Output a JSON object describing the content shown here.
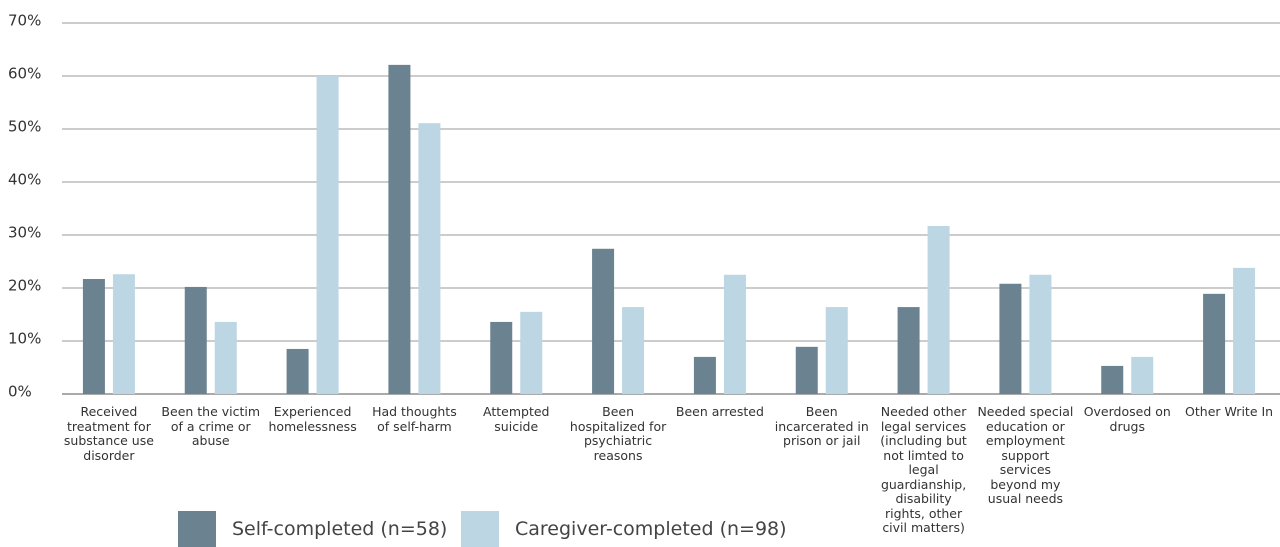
{
  "chart_data": {
    "type": "bar",
    "categories": [
      "Received treatment for substance use disorder",
      "Been the victim of a crime or abuse",
      "Experienced homelessness",
      "Had thoughts of self-harm",
      "Attempted suicide",
      "Been hospitalized for psychiatric reasons",
      "Been arrested",
      "Been incarcerated in prison or jail",
      "Needed other legal services (including but not limted to legal guardianship, disability rights, other civil matters)",
      "Needed special education or employment support services beyond my usual needs",
      "Overdosed on drugs",
      "Other Write In"
    ],
    "series": [
      {
        "name": "Self-completed (n=58)",
        "color": "#6b8290",
        "values": [
          21.7,
          20.2,
          8.5,
          62.1,
          13.6,
          27.4,
          7.0,
          8.9,
          16.4,
          20.8,
          5.3,
          18.9
        ]
      },
      {
        "name": "Caregiver-completed (n=98)",
        "color": "#bcd6e3",
        "values": [
          22.6,
          13.6,
          60,
          51.1,
          15.5,
          16.4,
          22.5,
          16.4,
          31.7,
          22.5,
          7.0,
          23.8
        ]
      }
    ],
    "ylim": [
      0,
      70
    ],
    "yticks": [
      {
        "value": 0,
        "label": "0%"
      },
      {
        "value": 10,
        "label": "10%"
      },
      {
        "value": 20,
        "label": "20%"
      },
      {
        "value": 30,
        "label": "30%"
      },
      {
        "value": 40,
        "label": "40%"
      },
      {
        "value": 50,
        "label": "50%"
      },
      {
        "value": 60,
        "label": "60%"
      },
      {
        "value": 70,
        "label": "70%"
      }
    ],
    "grid": true,
    "legend": "bottom"
  }
}
